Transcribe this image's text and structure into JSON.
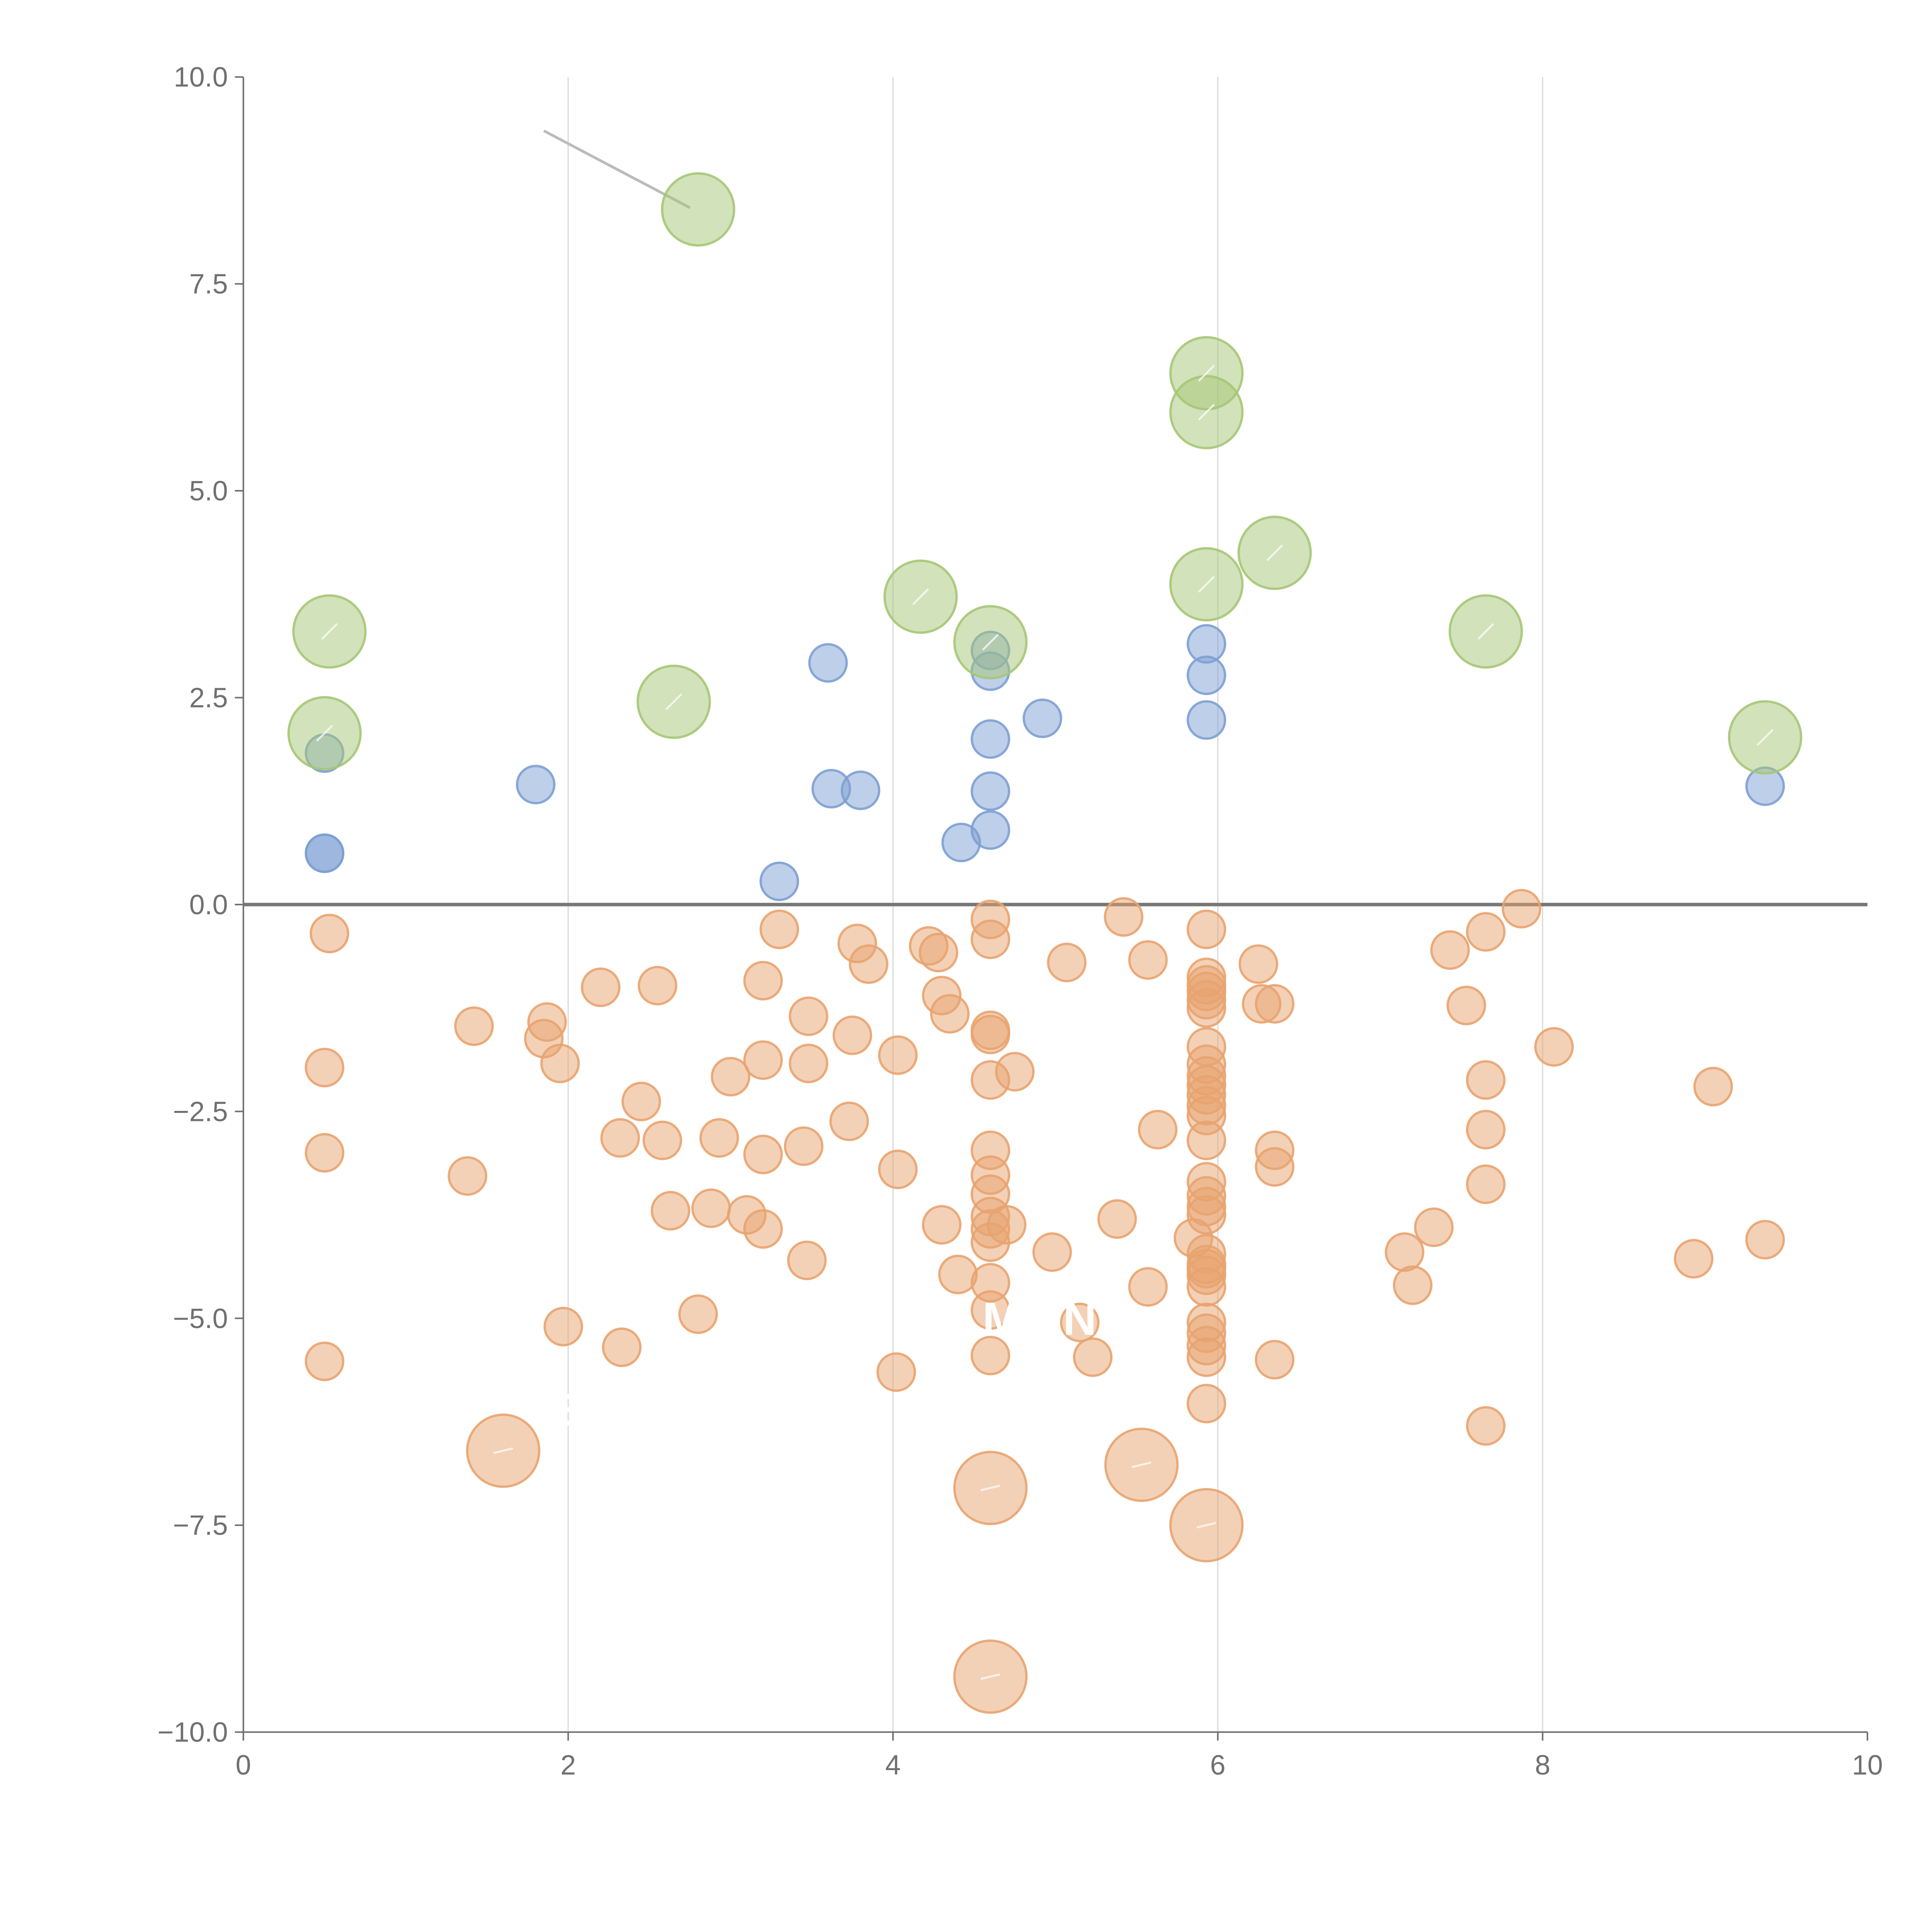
{
  "chart_data": {
    "type": "scatter",
    "title": "",
    "xlabel": "",
    "ylabel": "",
    "xlim": [
      0,
      10
    ],
    "ylim": [
      -10,
      10
    ],
    "x_ticks": [
      0,
      2,
      4,
      6,
      8,
      10
    ],
    "x_tick_labels": [
      "0",
      "2",
      "4",
      "6",
      "8",
      "10"
    ],
    "y_ticks": [
      10,
      7.5,
      5,
      2.5,
      0,
      -2.5,
      -5,
      -7.5,
      -10
    ],
    "y_tick_labels": [
      "10.0",
      "7.5",
      "5.0",
      "2.5",
      "0.0",
      "−2.5",
      "−5.0",
      "−7.5",
      "−10.0"
    ],
    "vertical_grid": true,
    "zero_line": true,
    "annotations": [
      {
        "text": "M",
        "x": 4.67,
        "y": -5.2
      },
      {
        "text": "N",
        "x": 5.15,
        "y": -5.2
      },
      {
        "text": "E",
        "x": 1.95,
        "y": -6.3
      }
    ],
    "series": [
      {
        "name": "green",
        "color": "#a5c676",
        "size": "large",
        "points": [
          [
            2.8,
            8.4
          ],
          [
            5.93,
            6.42
          ],
          [
            5.93,
            5.95
          ],
          [
            6.35,
            4.25
          ],
          [
            5.93,
            3.87
          ],
          [
            4.17,
            3.72
          ],
          [
            4.6,
            3.17
          ],
          [
            0.53,
            3.3
          ],
          [
            7.65,
            3.3
          ],
          [
            2.65,
            2.45
          ],
          [
            0.5,
            2.07
          ],
          [
            9.37,
            2.02
          ]
        ],
        "leader_lines": [
          {
            "from": [
              2.75,
              8.42
            ],
            "to": [
              1.85,
              9.35
            ],
            "color": "#bbbbbb"
          }
        ]
      },
      {
        "name": "blue",
        "color": "#7d9fd3",
        "size": "small",
        "points": [
          [
            3.6,
            2.92
          ],
          [
            4.6,
            3.07
          ],
          [
            4.6,
            2.82
          ],
          [
            5.93,
            3.15
          ],
          [
            5.93,
            2.77
          ],
          [
            5.93,
            2.23
          ],
          [
            4.92,
            2.25
          ],
          [
            4.6,
            2.0
          ],
          [
            0.5,
            1.83
          ],
          [
            1.8,
            1.45
          ],
          [
            3.62,
            1.4
          ],
          [
            3.8,
            1.38
          ],
          [
            4.6,
            1.37
          ],
          [
            4.6,
            0.9
          ],
          [
            4.42,
            0.75
          ],
          [
            9.37,
            1.43
          ],
          [
            0.5,
            0.62
          ],
          [
            0.5,
            0.62
          ],
          [
            3.3,
            0.28
          ]
        ]
      },
      {
        "name": "orange",
        "color": "#e8a36f",
        "size": "small",
        "points": [
          [
            0.53,
            -0.35
          ],
          [
            4.6,
            -0.18
          ],
          [
            4.6,
            -0.42
          ],
          [
            5.42,
            -0.15
          ],
          [
            5.93,
            -0.3
          ],
          [
            7.87,
            -0.05
          ],
          [
            7.65,
            -0.33
          ],
          [
            3.3,
            -0.3
          ],
          [
            3.78,
            -0.47
          ],
          [
            3.85,
            -0.72
          ],
          [
            4.22,
            -0.5
          ],
          [
            4.28,
            -0.58
          ],
          [
            5.07,
            -0.7
          ],
          [
            5.57,
            -0.67
          ],
          [
            6.25,
            -0.72
          ],
          [
            7.43,
            -0.55
          ],
          [
            2.2,
            -1.0
          ],
          [
            2.55,
            -0.98
          ],
          [
            3.2,
            -0.92
          ],
          [
            4.3,
            -1.1
          ],
          [
            4.35,
            -1.32
          ],
          [
            5.93,
            -0.88
          ],
          [
            5.93,
            -0.97
          ],
          [
            5.93,
            -1.05
          ],
          [
            5.93,
            -1.15
          ],
          [
            5.93,
            -1.25
          ],
          [
            6.27,
            -1.2
          ],
          [
            6.35,
            -1.2
          ],
          [
            7.53,
            -1.22
          ],
          [
            1.42,
            -1.47
          ],
          [
            1.87,
            -1.42
          ],
          [
            1.85,
            -1.62
          ],
          [
            3.48,
            -1.35
          ],
          [
            3.75,
            -1.58
          ],
          [
            4.6,
            -1.52
          ],
          [
            4.6,
            -1.57
          ],
          [
            5.93,
            -1.72
          ],
          [
            8.07,
            -1.72
          ],
          [
            1.95,
            -1.92
          ],
          [
            3.2,
            -1.88
          ],
          [
            3.48,
            -1.92
          ],
          [
            4.03,
            -1.82
          ],
          [
            0.5,
            -1.97
          ],
          [
            3.0,
            -2.08
          ],
          [
            4.6,
            -2.12
          ],
          [
            4.75,
            -2.02
          ],
          [
            5.93,
            -1.93
          ],
          [
            5.93,
            -2.07
          ],
          [
            5.93,
            -2.18
          ],
          [
            5.93,
            -2.3
          ],
          [
            5.93,
            -2.43
          ],
          [
            5.93,
            -2.55
          ],
          [
            7.65,
            -2.12
          ],
          [
            9.05,
            -2.2
          ],
          [
            2.45,
            -2.38
          ],
          [
            2.32,
            -2.82
          ],
          [
            2.58,
            -2.85
          ],
          [
            2.93,
            -2.82
          ],
          [
            3.2,
            -3.02
          ],
          [
            3.45,
            -2.92
          ],
          [
            3.73,
            -2.62
          ],
          [
            5.63,
            -2.72
          ],
          [
            5.93,
            -2.85
          ],
          [
            7.65,
            -2.72
          ],
          [
            0.5,
            -3.0
          ],
          [
            4.6,
            -2.97
          ],
          [
            6.35,
            -2.97
          ],
          [
            6.35,
            -3.17
          ],
          [
            4.03,
            -3.2
          ],
          [
            1.38,
            -3.28
          ],
          [
            4.6,
            -3.27
          ],
          [
            4.6,
            -3.5
          ],
          [
            5.93,
            -3.35
          ],
          [
            5.93,
            -3.52
          ],
          [
            5.93,
            -3.65
          ],
          [
            5.93,
            -3.75
          ],
          [
            7.65,
            -3.38
          ],
          [
            2.63,
            -3.7
          ],
          [
            2.88,
            -3.67
          ],
          [
            3.1,
            -3.75
          ],
          [
            3.2,
            -3.92
          ],
          [
            4.6,
            -3.77
          ],
          [
            4.6,
            -3.92
          ],
          [
            4.6,
            -4.08
          ],
          [
            4.7,
            -3.87
          ],
          [
            4.3,
            -3.87
          ],
          [
            5.38,
            -3.8
          ],
          [
            7.33,
            -3.9
          ],
          [
            3.47,
            -4.3
          ],
          [
            4.4,
            -4.47
          ],
          [
            4.98,
            -4.2
          ],
          [
            5.85,
            -4.03
          ],
          [
            5.93,
            -4.22
          ],
          [
            5.93,
            -4.35
          ],
          [
            5.93,
            -4.4
          ],
          [
            5.93,
            -4.48
          ],
          [
            5.93,
            -4.62
          ],
          [
            7.15,
            -4.2
          ],
          [
            7.2,
            -4.6
          ],
          [
            8.93,
            -4.28
          ],
          [
            9.37,
            -4.05
          ],
          [
            4.6,
            -4.57
          ],
          [
            5.57,
            -4.62
          ],
          [
            4.6,
            -4.9
          ],
          [
            2.8,
            -4.95
          ],
          [
            1.97,
            -5.1
          ],
          [
            2.33,
            -5.35
          ],
          [
            5.15,
            -5.05
          ],
          [
            5.23,
            -5.47
          ],
          [
            5.93,
            -5.05
          ],
          [
            5.93,
            -5.18
          ],
          [
            5.93,
            -5.33
          ],
          [
            5.93,
            -5.47
          ],
          [
            6.35,
            -5.5
          ],
          [
            0.5,
            -5.52
          ],
          [
            4.6,
            -5.45
          ],
          [
            4.02,
            -5.65
          ],
          [
            5.93,
            -6.03
          ],
          [
            7.65,
            -6.3
          ]
        ],
        "large_points": [
          [
            1.6,
            -6.6
          ],
          [
            5.53,
            -6.77
          ],
          [
            4.6,
            -7.05
          ],
          [
            5.93,
            -7.5
          ],
          [
            4.6,
            -9.33
          ]
        ]
      }
    ]
  }
}
